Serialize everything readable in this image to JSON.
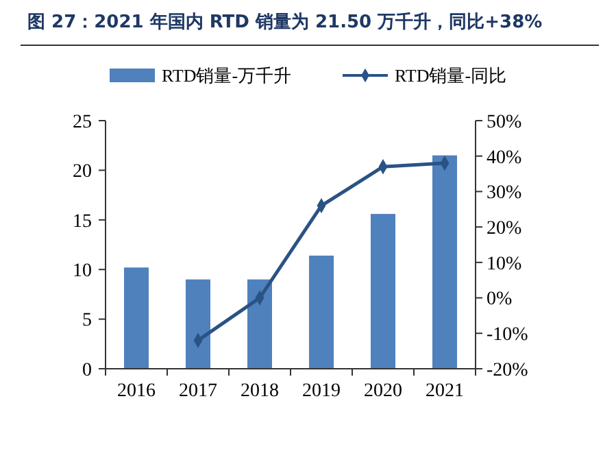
{
  "chart_data": {
    "type": "bar",
    "title": "图 27：2021 年国内 RTD 销量为 21.50 万千升，同比+38%",
    "categories": [
      "2016",
      "2017",
      "2018",
      "2019",
      "2020",
      "2021"
    ],
    "series": [
      {
        "name": "RTD销量-万千升",
        "color": "#4f81bd",
        "values": [
          10.2,
          9.0,
          9.0,
          11.4,
          15.6,
          21.5
        ]
      },
      {
        "name": "RTD销量-同比",
        "type": "line",
        "axis": "y2",
        "color": "#2a5384",
        "marker": "diamond",
        "values": [
          null,
          -12,
          0,
          26,
          37,
          38
        ]
      }
    ],
    "ylim": [
      0,
      25
    ],
    "yticks": [
      0,
      5,
      10,
      15,
      20,
      25
    ],
    "y2lim": [
      -20,
      50
    ],
    "y2ticks": [
      {
        "value": -20,
        "label": "-20%"
      },
      {
        "value": -10,
        "label": "-10%"
      },
      {
        "value": 0,
        "label": "0%"
      },
      {
        "value": 10,
        "label": "10%"
      },
      {
        "value": 20,
        "label": "20%"
      },
      {
        "value": 30,
        "label": "30%"
      },
      {
        "value": 40,
        "label": "40%"
      },
      {
        "value": 50,
        "label": "50%"
      }
    ],
    "legend": "top",
    "grid": false
  }
}
